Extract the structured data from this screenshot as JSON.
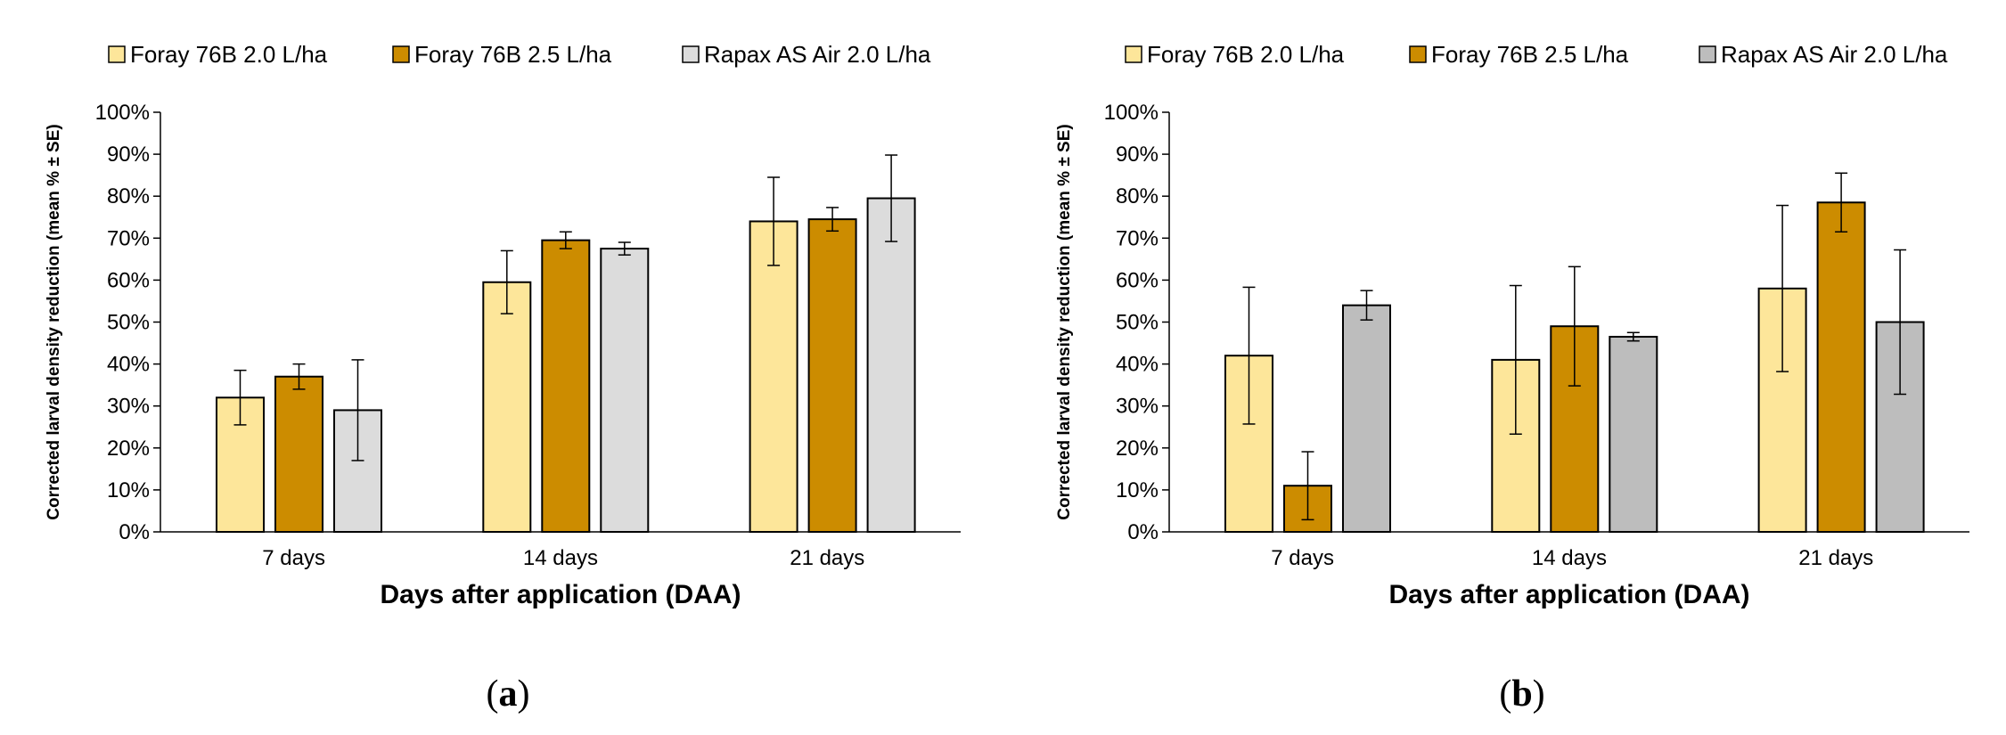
{
  "legend": [
    "Foray 76B 2.0 L/ha",
    "Foray 76B 2.5 L/ha",
    "Rapax AS Air 2.0 L/ha"
  ],
  "captions": {
    "a": "a",
    "b": "b"
  },
  "chart_data": [
    {
      "panel": "a",
      "type": "bar",
      "ylabel": "Corrected larval density reduction (mean % ± SE)",
      "xlabel": "Days after application (DAA)",
      "ylim": [
        0,
        100
      ],
      "yticks": [
        "0%",
        "10%",
        "20%",
        "30%",
        "40%",
        "50%",
        "60%",
        "70%",
        "80%",
        "90%",
        "100%"
      ],
      "categories": [
        "7 days",
        "14 days",
        "21 days"
      ],
      "legend_position": "top",
      "grid": false,
      "series": [
        {
          "name": "Foray 76B 2.0 L/ha",
          "color": "#fde69a",
          "values": [
            32,
            59.5,
            74
          ],
          "se": [
            6.5,
            7.5,
            10.5
          ]
        },
        {
          "name": "Foray 76B 2.5 L/ha",
          "color": "#cc8c00",
          "values": [
            37,
            69.5,
            74.5
          ],
          "se": [
            3,
            2,
            2.8
          ]
        },
        {
          "name": "Rapax AS Air 2.0 L/ha",
          "color": "#dcdcdc",
          "values": [
            29,
            67.5,
            79.5
          ],
          "se": [
            12,
            1.5,
            10.3
          ]
        }
      ]
    },
    {
      "panel": "b",
      "type": "bar",
      "ylabel": "Corrected larval density reduction (mean % ± SE)",
      "xlabel": "Days after application (DAA)",
      "ylim": [
        0,
        100
      ],
      "yticks": [
        "0%",
        "10%",
        "20%",
        "30%",
        "40%",
        "50%",
        "60%",
        "70%",
        "80%",
        "90%",
        "100%"
      ],
      "categories": [
        "7 days",
        "14 days",
        "21 days"
      ],
      "legend_position": "top",
      "grid": false,
      "series": [
        {
          "name": "Foray 76B 2.0 L/ha",
          "color": "#fde69a",
          "values": [
            42,
            41,
            58
          ],
          "se": [
            16.3,
            17.7,
            19.8
          ]
        },
        {
          "name": "Foray 76B 2.5 L/ha",
          "color": "#cc8c00",
          "values": [
            11,
            49,
            78.5
          ],
          "se": [
            8.1,
            14.2,
            7
          ]
        },
        {
          "name": "Rapax AS Air 2.0 L/ha",
          "color": "#bdbdbd",
          "values": [
            54,
            46.5,
            50
          ],
          "se": [
            3.5,
            1,
            17.2
          ]
        }
      ]
    }
  ]
}
